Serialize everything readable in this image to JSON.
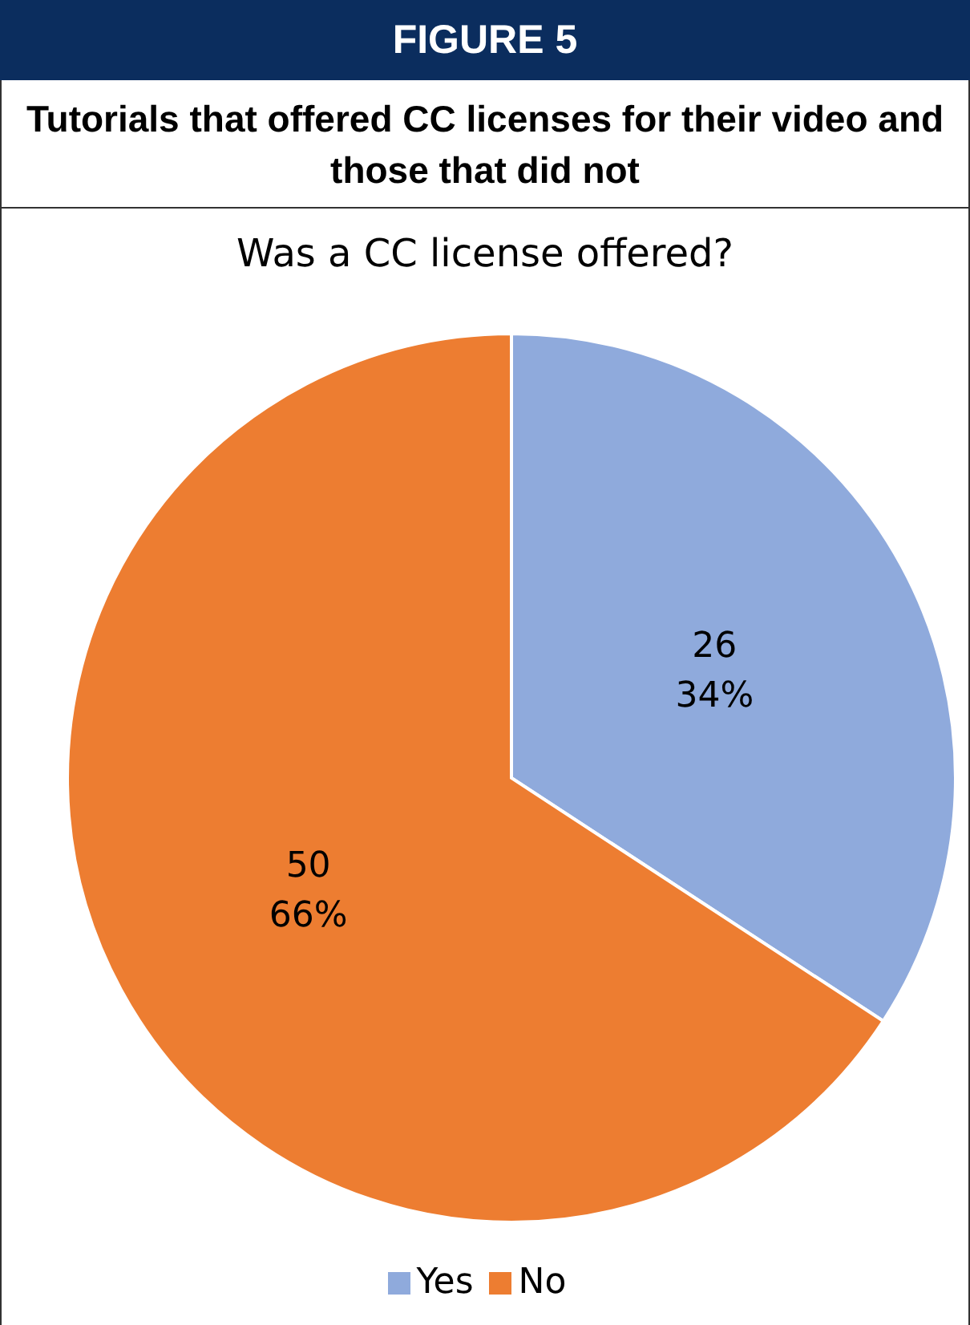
{
  "chart_data": {
    "type": "pie",
    "title": "FIGURE 5",
    "subtitle": "Tutorials that offered CC licenses for their video and those that did not",
    "annotations": [
      "Was a CC license offered?"
    ],
    "categories": [
      "Yes",
      "No"
    ],
    "values": [
      26,
      50
    ],
    "colors": [
      "#8faadc",
      "#ed7d31"
    ],
    "value_labels": [
      "26\n34%",
      "50\n66%"
    ],
    "legend": "bottom"
  }
}
